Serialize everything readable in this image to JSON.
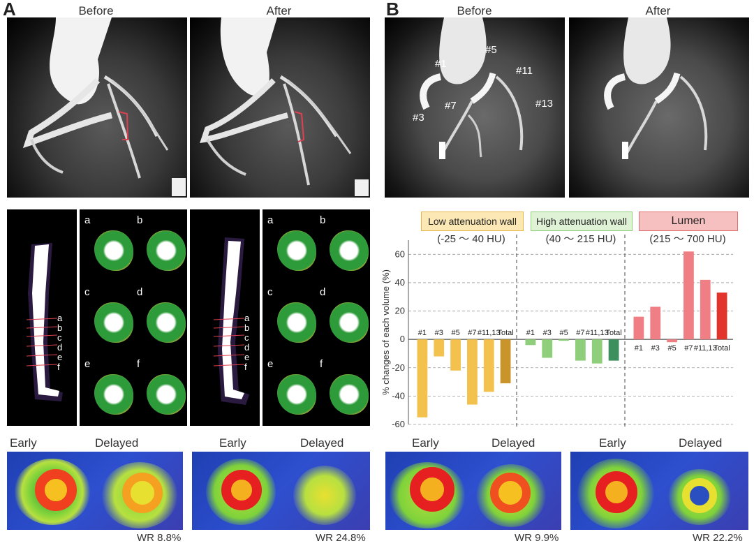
{
  "panelA": {
    "letter": "A",
    "before": "Before",
    "after": "After",
    "slices": [
      "a",
      "b",
      "c",
      "d",
      "e",
      "f"
    ],
    "early": "Early",
    "delayed": "Delayed",
    "wr_before": "WR 8.8%",
    "wr_after": "WR 24.8%"
  },
  "panelB": {
    "letter": "B",
    "before": "Before",
    "after": "After",
    "segments": [
      "#1",
      "#5",
      "#11",
      "#7",
      "#3",
      "#13"
    ],
    "early": "Early",
    "delayed": "Delayed",
    "wr_before": "WR 9.9%",
    "wr_after": "WR 22.2%"
  },
  "colors": {
    "low": "#f2c14e",
    "low_total": "#c9952b",
    "high": "#8fce7a",
    "high_total": "#3e8f5e",
    "lumen": "#ef7f84",
    "lumen_total": "#e2332c"
  },
  "chart_data": {
    "type": "bar",
    "ylabel": "% changes of each volume (%)",
    "ylim": [
      -60,
      70
    ],
    "yticks": [
      -60,
      -40,
      -20,
      0,
      20,
      40,
      60
    ],
    "grid": true,
    "groups": [
      {
        "name": "Low attenuation wall",
        "range": "(-25 ～ 40 HU)",
        "categories": [
          "#1",
          "#3",
          "#5",
          "#7",
          "#11,13",
          "Total"
        ],
        "values": [
          -55,
          -12,
          -22,
          -46,
          -37,
          -31
        ]
      },
      {
        "name": "High attenuation wall",
        "range": "(40 ～ 215 HU)",
        "categories": [
          "#1",
          "#3",
          "#5",
          "#7",
          "#11,13",
          "Total"
        ],
        "values": [
          -4,
          -13,
          0,
          -15,
          -17,
          -15
        ]
      },
      {
        "name": "Lumen",
        "range": "(215 ～ 700 HU)",
        "categories": [
          "#1",
          "#3",
          "#5",
          "#7",
          "#11,13",
          "Total"
        ],
        "values": [
          16,
          23,
          -2,
          62,
          42,
          33
        ]
      }
    ]
  }
}
